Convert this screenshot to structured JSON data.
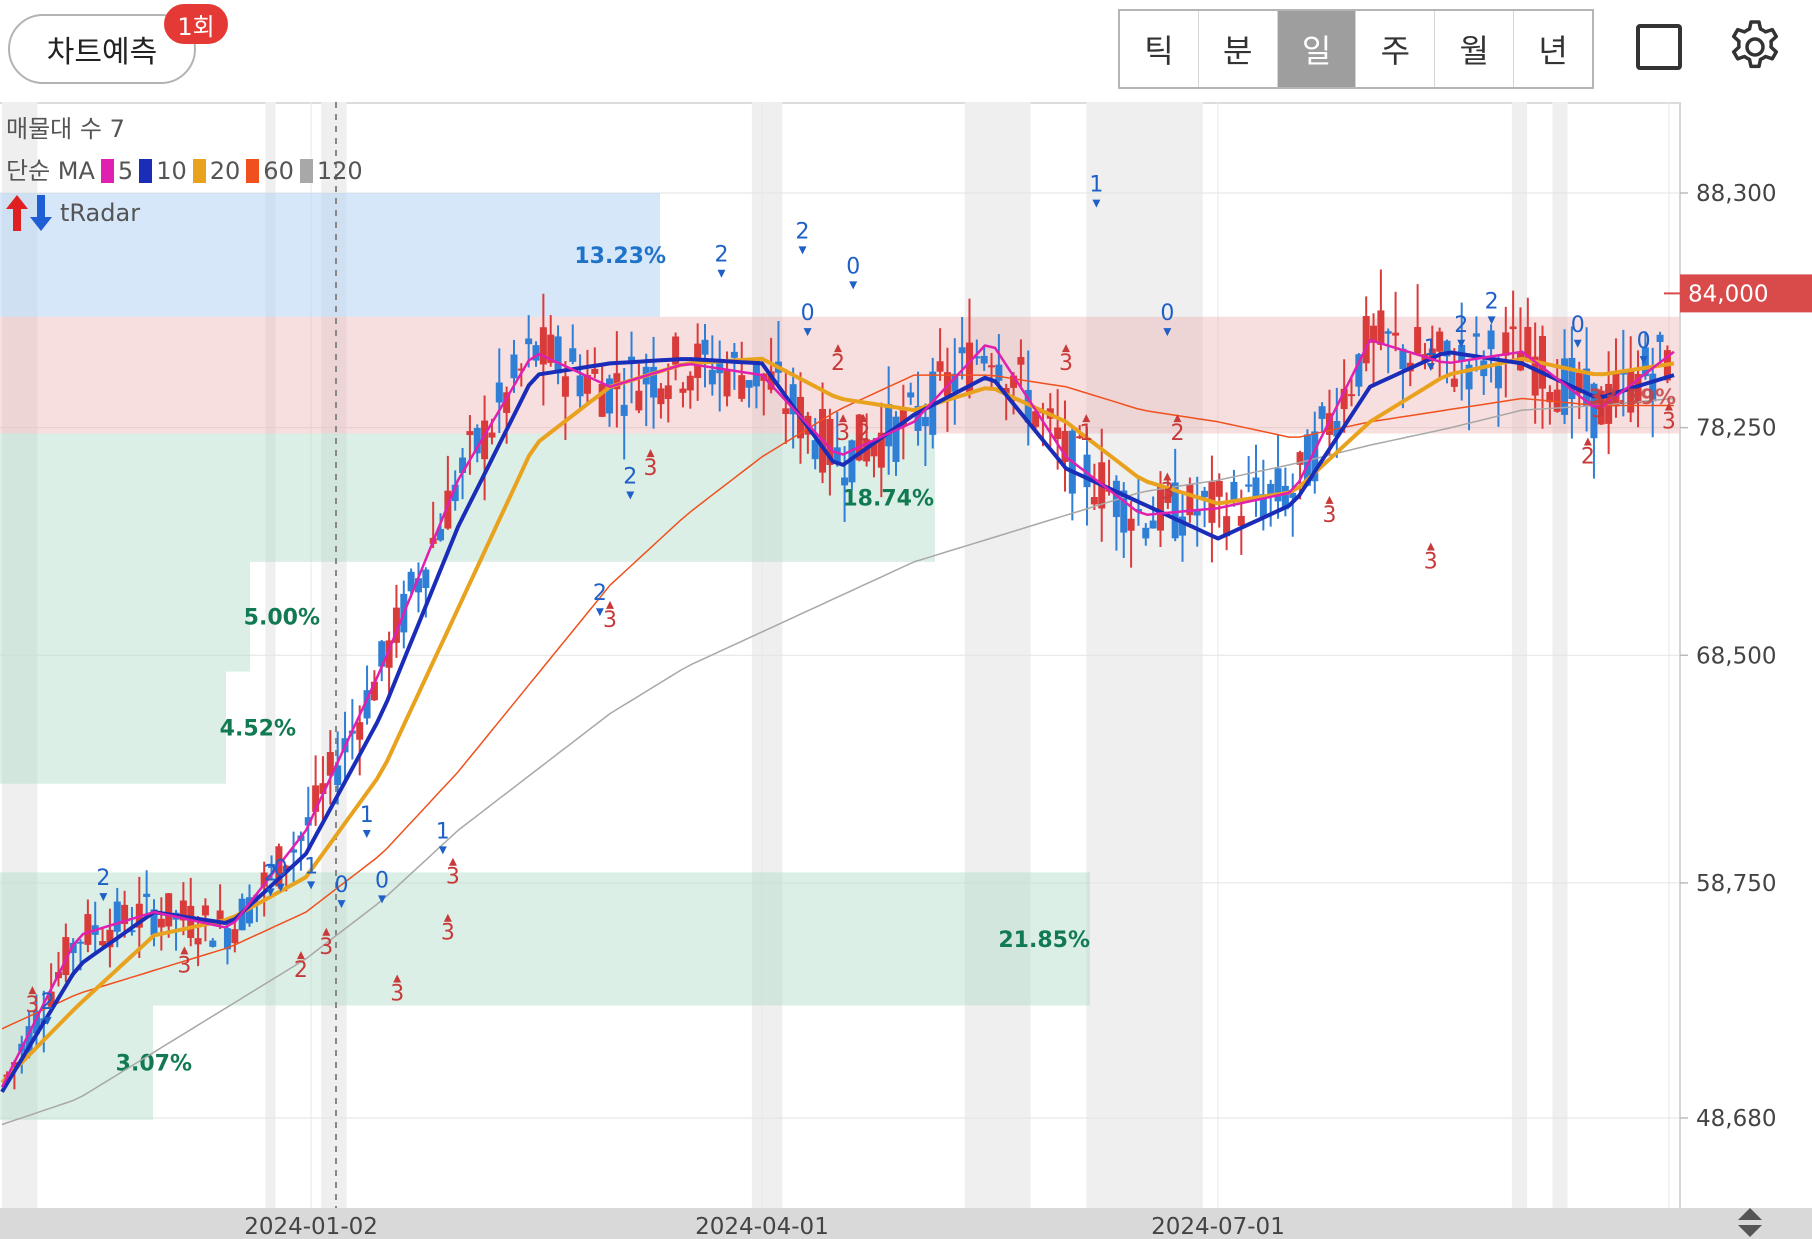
{
  "header": {
    "predict_button_label": "차트예측",
    "predict_badge": "1회",
    "period_tabs": [
      {
        "label": "틱",
        "active": false
      },
      {
        "label": "분",
        "active": false
      },
      {
        "label": "일",
        "active": true
      },
      {
        "label": "주",
        "active": false
      },
      {
        "label": "월",
        "active": false
      },
      {
        "label": "년",
        "active": false
      }
    ]
  },
  "legend": {
    "volume_profile": "매물대 수 7",
    "ma_label": "단순 MA",
    "ma_periods": [
      {
        "label": "5",
        "color": "#e020b0"
      },
      {
        "label": "10",
        "color": "#1a2db8"
      },
      {
        "label": "20",
        "color": "#e8a21e"
      },
      {
        "label": "60",
        "color": "#f0501e"
      },
      {
        "label": "120",
        "color": "#a8a8a8"
      }
    ],
    "tradar_label": "tRadar"
  },
  "chart_data": {
    "type": "candlestick",
    "y_axis": {
      "ticks": [
        "88,300",
        "78,250",
        "68,500",
        "58,750",
        "48,680"
      ],
      "range": [
        46800,
        91800
      ]
    },
    "x_axis": {
      "ticks": [
        "2024-01-02",
        "2024-04-01",
        "2024-07-01"
      ]
    },
    "current_price": "84,000",
    "volume_profile_bands": [
      {
        "label": "13.23%",
        "low": 83000,
        "high": 88300,
        "color": "blue"
      },
      {
        "label": "",
        "low": 78000,
        "high": 83000,
        "color": "red"
      },
      {
        "label": "18.74%",
        "low": 72500,
        "high": 78000,
        "color": "green"
      },
      {
        "label": "5.00%",
        "low": 67800,
        "high": 72500,
        "color": "green"
      },
      {
        "label": "4.52%",
        "low": 63000,
        "high": 67800,
        "color": "green"
      },
      {
        "label": "21.85%",
        "low": 53500,
        "high": 59200,
        "color": "green"
      },
      {
        "label": "3.07%",
        "low": 48600,
        "high": 53500,
        "color": "green"
      }
    ],
    "band_overlay_label": "33.59%",
    "signals": [
      {
        "label": "2",
        "color": "blue"
      },
      {
        "label": "3",
        "color": "red"
      },
      {
        "label": "2",
        "color": "blue"
      },
      {
        "label": "3",
        "color": "red"
      },
      {
        "label": "2",
        "color": "blue"
      },
      {
        "label": "0",
        "color": "blue"
      },
      {
        "label": "1",
        "color": "blue"
      },
      {
        "label": "0",
        "color": "blue"
      },
      {
        "label": "2",
        "color": "red"
      },
      {
        "label": "3",
        "color": "red"
      },
      {
        "label": "1",
        "color": "blue"
      },
      {
        "label": "0",
        "color": "blue"
      },
      {
        "label": "3",
        "color": "red"
      },
      {
        "label": "3",
        "color": "red"
      },
      {
        "label": "1",
        "color": "blue"
      },
      {
        "label": "3",
        "color": "red"
      },
      {
        "label": "2",
        "color": "blue"
      },
      {
        "label": "3",
        "color": "red"
      },
      {
        "label": "2",
        "color": "blue"
      },
      {
        "label": "3",
        "color": "red"
      },
      {
        "label": "2",
        "color": "blue"
      },
      {
        "label": "2",
        "color": "blue"
      },
      {
        "label": "0",
        "color": "blue"
      },
      {
        "label": "3",
        "color": "red"
      },
      {
        "label": "0",
        "color": "blue"
      },
      {
        "label": "2",
        "color": "red"
      },
      {
        "label": "2",
        "color": "red"
      },
      {
        "label": "1",
        "color": "blue"
      },
      {
        "label": "3",
        "color": "red"
      },
      {
        "label": "1",
        "color": "red"
      },
      {
        "label": "0",
        "color": "blue"
      },
      {
        "label": "2",
        "color": "red"
      },
      {
        "label": "3",
        "color": "red"
      },
      {
        "label": "3",
        "color": "red"
      },
      {
        "label": "1",
        "color": "blue"
      },
      {
        "label": "2",
        "color": "blue"
      },
      {
        "label": "2",
        "color": "blue"
      },
      {
        "label": "3",
        "color": "red"
      },
      {
        "label": "0",
        "color": "blue"
      },
      {
        "label": "3",
        "color": "red"
      },
      {
        "label": "2",
        "color": "red"
      },
      {
        "label": "0",
        "color": "blue"
      },
      {
        "label": "3",
        "color": "red"
      }
    ],
    "ma_series_approx": {
      "x_days": [
        0,
        15,
        30,
        45,
        60,
        75,
        90,
        105,
        120,
        135,
        150,
        165,
        180,
        195,
        210,
        225,
        240,
        255,
        270,
        285,
        300,
        315,
        330
      ],
      "ma5": [
        50000,
        56500,
        57500,
        56800,
        61000,
        68000,
        76000,
        81500,
        80000,
        81000,
        80500,
        77000,
        78500,
        82000,
        77000,
        74500,
        74800,
        75500,
        82000,
        81000,
        81500,
        79000,
        81500
      ],
      "ma10": [
        49800,
        55200,
        57500,
        57000,
        60000,
        66000,
        74000,
        80500,
        81000,
        81200,
        81000,
        76500,
        78800,
        80500,
        76500,
        75000,
        73500,
        75000,
        80000,
        81500,
        81000,
        79500,
        80500
      ],
      "ma20": [
        50200,
        53500,
        56500,
        57200,
        59000,
        63500,
        70500,
        77500,
        80000,
        81000,
        81200,
        79500,
        79000,
        80000,
        78500,
        76000,
        75000,
        75500,
        78500,
        80500,
        81200,
        80500,
        81000
      ],
      "ma60": [
        52500,
        54000,
        55000,
        56000,
        57500,
        60000,
        63500,
        67500,
        71500,
        74500,
        77000,
        79000,
        80500,
        80500,
        80000,
        79000,
        78500,
        77800,
        78500,
        79000,
        79500,
        79200,
        79200
      ],
      "ma120": [
        48400,
        49500,
        51500,
        53500,
        55500,
        58000,
        61000,
        63500,
        66000,
        68000,
        69500,
        71000,
        72500,
        73500,
        74500,
        75500,
        76000,
        76700,
        77500,
        78200,
        79000,
        79200,
        79500
      ]
    }
  }
}
